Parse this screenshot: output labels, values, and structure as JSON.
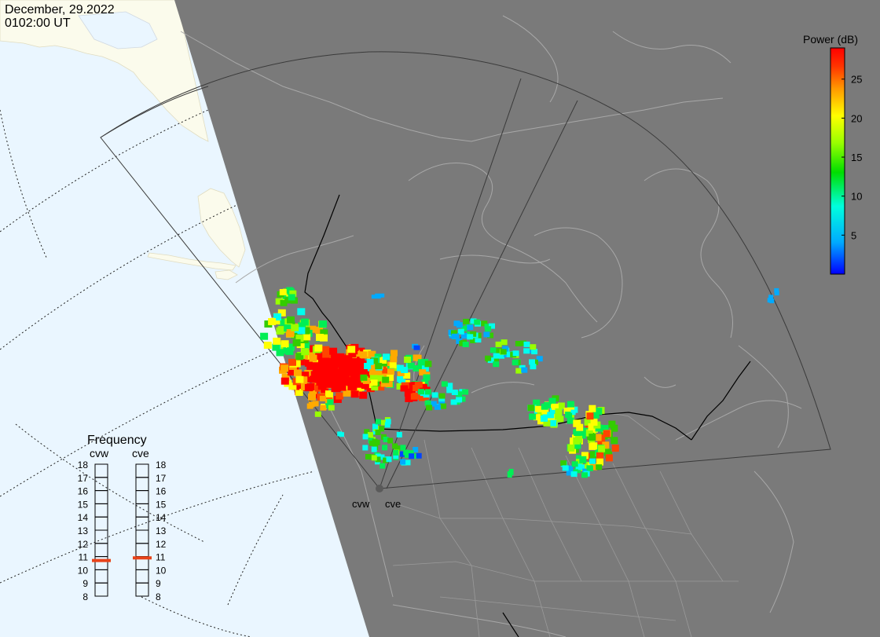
{
  "header": {
    "date": "December, 29.2022",
    "time": "0102:00 UT"
  },
  "colorbar": {
    "title": "Power (dB)",
    "ticks": [
      "25",
      "20",
      "15",
      "10",
      "5"
    ],
    "tick_values": [
      25,
      20,
      15,
      10,
      5
    ],
    "min": 0,
    "max": 29,
    "stops": [
      "#0000ff",
      "#00aaff",
      "#00ffdd",
      "#00dd00",
      "#99ff00",
      "#ffff00",
      "#ff9900",
      "#ff3300",
      "#ff0000"
    ]
  },
  "frequency_panel": {
    "title": "Frequency",
    "radars": [
      {
        "label": "cvw",
        "frequency_mhz": 10.7
      },
      {
        "label": "cve",
        "frequency_mhz": 10.9
      }
    ],
    "scale": [
      "18",
      "17",
      "16",
      "15",
      "14",
      "13",
      "12",
      "11",
      "10",
      "9",
      "8"
    ],
    "indicator_color": "#e8431a"
  },
  "radar_sites": [
    {
      "label": "cvw"
    },
    {
      "label": "cve"
    }
  ],
  "colors": {
    "night_side": "#7a7a7a",
    "day_ocean": "#eaf6ff",
    "day_land": "#fbfbec",
    "coastline_night": "#a8a8a8",
    "border": "#000000"
  }
}
